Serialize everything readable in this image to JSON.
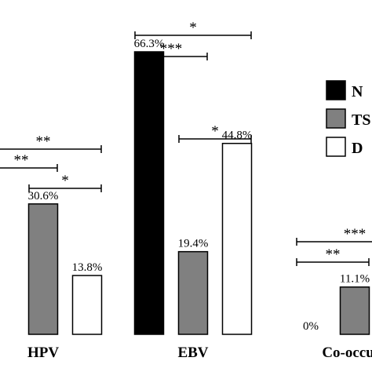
{
  "chart_data": {
    "type": "bar",
    "categories": [
      "HPV",
      "EBV",
      "Co-occurr"
    ],
    "series": [
      {
        "name": "N",
        "values": [
          null,
          66.3,
          0
        ],
        "value_labels": [
          "",
          "66.3%",
          "0%"
        ],
        "color": "#000000"
      },
      {
        "name": "TS",
        "values": [
          30.6,
          19.4,
          11.1
        ],
        "value_labels": [
          "30.6%",
          "19.4%",
          "11.1%"
        ],
        "color": "#808080"
      },
      {
        "name": "D",
        "values": [
          13.8,
          44.8,
          null
        ],
        "value_labels": [
          "13.8%",
          "44.8%",
          ""
        ],
        "color": "#ffffff"
      }
    ],
    "legend": {
      "placement": "top-right"
    },
    "significance": [
      {
        "category": 0,
        "from": 0,
        "to": 2,
        "label": "**"
      },
      {
        "category": 0,
        "from": 0,
        "to": 1,
        "label": "**"
      },
      {
        "category": 0,
        "from": 1,
        "to": 2,
        "label": "*"
      },
      {
        "category": 1,
        "from": 0,
        "to": 2,
        "label": "*"
      },
      {
        "category": 1,
        "from": 0,
        "to": 1,
        "label": "***"
      },
      {
        "category": 1,
        "from": 1,
        "to": 2,
        "label": "*"
      },
      {
        "category": 2,
        "from": 0,
        "to": 2,
        "label": "***"
      },
      {
        "category": 2,
        "from": 0,
        "to": 1,
        "label": "**"
      }
    ],
    "xlabel": "",
    "ylabel": "",
    "ylim": [
      0,
      80
    ],
    "grid": false
  }
}
